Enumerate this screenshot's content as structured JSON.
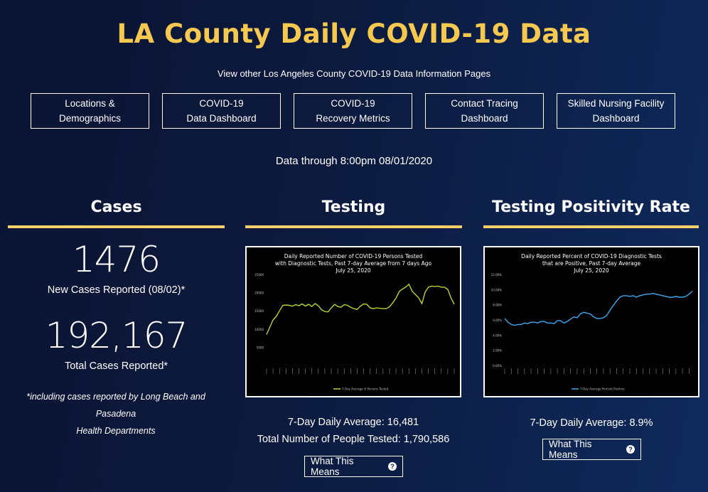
{
  "header": {
    "title": "LA County Daily COVID-19 Data",
    "subtitle": "View other Los Angeles County COVID-19 Data Information Pages"
  },
  "nav": [
    {
      "label": "Locations &\nDemographics"
    },
    {
      "label": "COVID-19\nData Dashboard"
    },
    {
      "label": "COVID-19\nRecovery Metrics"
    },
    {
      "label": "Contact Tracing\nDashboard"
    },
    {
      "label": "Skilled Nursing Facility\nDashboard"
    }
  ],
  "data_through": "Data through 8:00pm 08/01/2020",
  "cases": {
    "heading": "Cases",
    "new_cases": "1476",
    "new_cases_label": "New Cases Reported (08/02)*",
    "total_cases": "192,167",
    "total_cases_label": "Total Cases Reported*",
    "footnote": "*including cases reported by Long Beach and Pasadena\nHealth Departments"
  },
  "testing": {
    "heading": "Testing",
    "avg_label": "7-Day Daily Average: 16,481",
    "total_label": "Total Number of People Tested: 1,790,586",
    "button": "What This Means"
  },
  "positivity": {
    "heading": "Testing Positivity Rate",
    "avg_label": "7-Day Daily Average: 8.9%",
    "button": "What This Means"
  },
  "colors": {
    "accent": "#f5c850",
    "rule": "#f5d06a",
    "testing_line": "#b5d334",
    "positivity_line": "#3ea8ef"
  },
  "chart_data": [
    {
      "type": "line",
      "title": "Daily Reported Number of COVID-19 Persons Tested\nwith Diagnostic Tests, Past 7-day Average from 7 days Ago\nJuly 25, 2020",
      "ylim": [
        0,
        25000
      ],
      "yticks": [
        "25000",
        "20000",
        "15000",
        "10000",
        "5000"
      ],
      "legend": "7-Day Average # Persons Tested",
      "series": [
        {
          "name": "7-Day Average # Persons Tested",
          "values": [
            8500,
            10500,
            12500,
            13500,
            15000,
            16500,
            16600,
            16500,
            16300,
            16700,
            16400,
            16900,
            16300,
            16800,
            16200,
            17000,
            16400,
            15300,
            14800,
            14700,
            15800,
            16800,
            16200,
            16000,
            16700,
            16500,
            16000,
            15600,
            15400,
            16300,
            16900,
            16800,
            15800,
            15600,
            15800,
            15700,
            15600,
            15600,
            16100,
            17200,
            18500,
            20300,
            21000,
            21500,
            22300,
            20400,
            19500,
            18600,
            17000,
            20100,
            21500,
            21800,
            21700,
            21800,
            21500,
            21500,
            20900,
            18600,
            16800
          ]
        }
      ]
    },
    {
      "type": "line",
      "title": "Daily Reported Percent of COVID-19 Diagnostic Tests\nthat are Positive, Past 7-day Average\nJuly 25, 2020",
      "ylim": [
        0,
        12
      ],
      "yticks": [
        "12.00%",
        "10.00%",
        "8.00%",
        "6.00%",
        "4.00%",
        "2.00%",
        "0.00%"
      ],
      "legend": "7-Day Average Percent Positive",
      "series": [
        {
          "name": "7-Day Average Percent Positive",
          "values": [
            6.2,
            5.7,
            5.4,
            5.3,
            5.4,
            5.4,
            5.6,
            5.5,
            5.7,
            5.7,
            5.6,
            5.8,
            5.8,
            5.6,
            5.6,
            5.5,
            5.9,
            5.9,
            5.6,
            5.8,
            6.1,
            6.4,
            6.3,
            6.8,
            7.0,
            6.9,
            6.8,
            6.4,
            6.2,
            6.2,
            6.3,
            6.6,
            7.3,
            7.9,
            8.5,
            9.0,
            9.2,
            9.2,
            9.1,
            9.2,
            9.0,
            9.2,
            9.3,
            9.4,
            9.4,
            9.5,
            9.4,
            9.3,
            9.2,
            9.1,
            9.0,
            9.0,
            9.1,
            9.0,
            9.0,
            9.1,
            9.4,
            9.8
          ]
        }
      ]
    }
  ]
}
